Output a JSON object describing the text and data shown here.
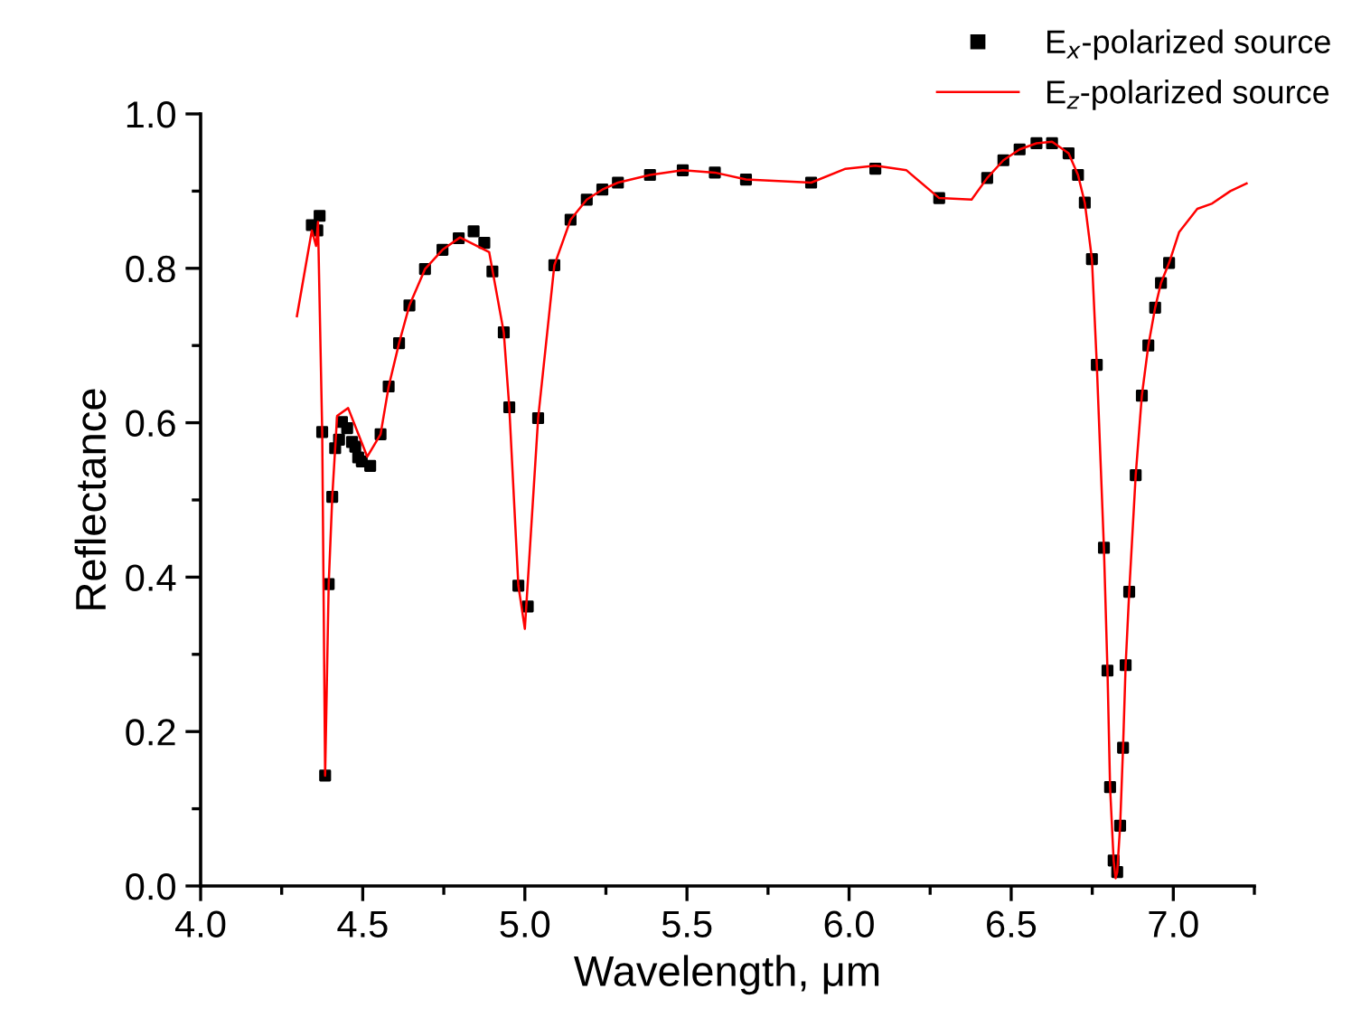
{
  "chart_data": {
    "type": "line",
    "xlabel": "Wavelength, μm",
    "ylabel": "Reflectance",
    "xlim": [
      4.0,
      7.25
    ],
    "xticks": [
      {
        "value": 4.0,
        "label": "4.0"
      },
      {
        "value": 4.5,
        "label": "4.5"
      },
      {
        "value": 5.0,
        "label": "5.0"
      },
      {
        "value": 5.5,
        "label": "5.5"
      },
      {
        "value": 6.0,
        "label": "6.0"
      },
      {
        "value": 6.5,
        "label": "6.5"
      },
      {
        "value": 7.0,
        "label": "7.0"
      }
    ],
    "ylim": [
      0.0,
      1.0
    ],
    "yticks": [
      {
        "value": 0.0,
        "label": "0.0"
      },
      0.2,
      0.4,
      0.6,
      0.8,
      {
        "value": 1.0,
        "label": "1.0"
      }
    ],
    "grid": false,
    "legend": "top right",
    "series": [
      {
        "name": "E$_{x}$-polarized source",
        "type": "scatter",
        "marker": "square",
        "color": "#000000",
        "x": [
          4.343,
          4.36,
          4.367,
          4.375,
          4.384,
          4.395,
          4.406,
          4.415,
          4.427,
          4.436,
          4.452,
          4.467,
          4.477,
          4.486,
          4.497,
          4.523,
          4.555,
          4.58,
          4.612,
          4.644,
          4.692,
          4.746,
          4.796,
          4.842,
          4.875,
          4.9,
          4.935,
          4.952,
          4.98,
          5.009,
          5.041,
          5.091,
          5.141,
          5.191,
          5.239,
          5.287,
          5.386,
          5.487,
          5.586,
          5.682,
          5.883,
          6.081,
          6.278,
          6.426,
          6.476,
          6.526,
          6.578,
          6.626,
          6.677,
          6.706,
          6.727,
          6.749,
          6.764,
          6.786,
          6.797,
          6.805,
          6.816,
          6.827,
          6.836,
          6.845,
          6.853,
          6.864,
          6.884,
          6.903,
          6.923,
          6.944,
          6.962,
          6.987
        ],
        "values": [
          0.856,
          0.849,
          0.868,
          0.588,
          0.143,
          0.391,
          0.504,
          0.567,
          0.578,
          0.601,
          0.593,
          0.575,
          0.569,
          0.555,
          0.55,
          0.544,
          0.585,
          0.647,
          0.703,
          0.752,
          0.799,
          0.824,
          0.839,
          0.848,
          0.833,
          0.796,
          0.717,
          0.62,
          0.389,
          0.362,
          0.606,
          0.804,
          0.863,
          0.889,
          0.902,
          0.911,
          0.921,
          0.927,
          0.924,
          0.915,
          0.911,
          0.929,
          0.891,
          0.917,
          0.94,
          0.954,
          0.962,
          0.962,
          0.949,
          0.921,
          0.885,
          0.812,
          0.675,
          0.438,
          0.279,
          0.128,
          0.033,
          0.018,
          0.078,
          0.179,
          0.286,
          0.381,
          0.532,
          0.635,
          0.7,
          0.749,
          0.781,
          0.807
        ]
      },
      {
        "name": "E$_{z}$-polarized source",
        "line_style": "solid",
        "color": "#ff0000",
        "x": [
          4.297,
          4.343,
          4.356,
          4.362,
          4.375,
          4.384,
          4.395,
          4.406,
          4.421,
          4.455,
          4.514,
          4.555,
          4.58,
          4.612,
          4.644,
          4.692,
          4.746,
          4.8,
          4.89,
          4.935,
          4.952,
          4.98,
          5.0,
          5.041,
          5.091,
          5.141,
          5.191,
          5.239,
          5.287,
          5.386,
          5.487,
          5.586,
          5.682,
          5.883,
          5.989,
          6.081,
          6.177,
          6.278,
          6.378,
          6.426,
          6.476,
          6.526,
          6.578,
          6.626,
          6.677,
          6.706,
          6.727,
          6.749,
          6.764,
          6.786,
          6.797,
          6.805,
          6.816,
          6.822,
          6.827,
          6.836,
          6.845,
          6.853,
          6.864,
          6.884,
          6.903,
          6.923,
          6.944,
          6.962,
          6.987,
          7.018,
          7.074,
          7.12,
          7.176,
          7.226
        ],
        "values": [
          0.738,
          0.849,
          0.829,
          0.86,
          0.588,
          0.143,
          0.391,
          0.504,
          0.609,
          0.619,
          0.556,
          0.585,
          0.647,
          0.703,
          0.752,
          0.799,
          0.824,
          0.84,
          0.821,
          0.717,
          0.62,
          0.389,
          0.333,
          0.606,
          0.804,
          0.863,
          0.889,
          0.902,
          0.911,
          0.921,
          0.927,
          0.924,
          0.915,
          0.911,
          0.929,
          0.933,
          0.927,
          0.891,
          0.889,
          0.917,
          0.94,
          0.954,
          0.962,
          0.964,
          0.949,
          0.921,
          0.885,
          0.812,
          0.676,
          0.438,
          0.279,
          0.128,
          0.033,
          0.01,
          0.018,
          0.078,
          0.179,
          0.286,
          0.381,
          0.532,
          0.635,
          0.7,
          0.749,
          0.781,
          0.807,
          0.847,
          0.877,
          0.884,
          0.9,
          0.91
        ]
      }
    ]
  }
}
